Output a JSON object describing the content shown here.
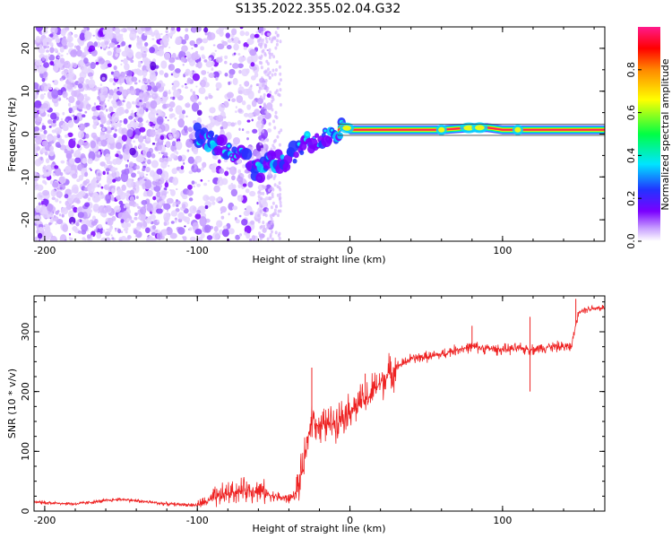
{
  "figure": {
    "title": "S135.2022.355.02.04.G32"
  },
  "chart_data": [
    {
      "type": "heatmap",
      "xlabel": "Height of straight line (km)",
      "ylabel": "Frequency (Hz)",
      "xlim": [
        -207,
        167
      ],
      "ylim": [
        -25,
        25
      ],
      "xticks": [
        -200,
        -100,
        0,
        100
      ],
      "yticks": [
        -20,
        -10,
        0,
        10,
        20
      ],
      "colorbar": {
        "label": "Normalized spectral amplitude",
        "range": [
          0,
          1
        ],
        "ticks": [
          "0.0",
          "0.2",
          "0.4",
          "0.6",
          "0.8"
        ],
        "colors": [
          "#ffffff",
          "#7a00ff",
          "#2233ff",
          "#00e5ff",
          "#00ff44",
          "#ffff00",
          "#ff8800",
          "#ff0000",
          "#ff1a8c"
        ]
      },
      "ridge": {
        "x": [
          -100,
          -90,
          -80,
          -70,
          -60,
          -50,
          -45,
          -40,
          -35,
          -30,
          -20,
          -10,
          -5,
          0,
          10,
          30,
          60,
          80,
          90,
          100,
          120,
          140,
          167
        ],
        "y": [
          0,
          -2,
          -4,
          -5,
          -9,
          -6,
          -7,
          -6,
          -4,
          -2,
          -1,
          0,
          2,
          1,
          1,
          1,
          1,
          1.5,
          1.5,
          1,
          1,
          1,
          1
        ]
      }
    },
    {
      "type": "line",
      "xlabel": "Height of straight line (km)",
      "ylabel": "SNR (10 * v/v)",
      "xlim": [
        -207,
        167
      ],
      "ylim": [
        0,
        360
      ],
      "xticks": [
        -200,
        -100,
        0,
        100
      ],
      "yticks": [
        0,
        100,
        200,
        300
      ],
      "color": "#ee2222",
      "trend": {
        "x": [
          -207,
          -180,
          -150,
          -120,
          -100,
          -90,
          -80,
          -70,
          -60,
          -50,
          -40,
          -35,
          -30,
          -25,
          -20,
          -10,
          0,
          10,
          20,
          30,
          40,
          50,
          60,
          70,
          80,
          90,
          100,
          110,
          120,
          130,
          140,
          145,
          150,
          160,
          167
        ],
        "y": [
          15,
          12,
          20,
          12,
          10,
          20,
          30,
          35,
          35,
          25,
          20,
          30,
          80,
          160,
          140,
          150,
          170,
          185,
          215,
          240,
          255,
          258,
          262,
          270,
          275,
          272,
          270,
          272,
          270,
          275,
          275,
          275,
          335,
          340,
          340
        ]
      },
      "spikes": [
        {
          "x": -25,
          "y": 240
        },
        {
          "x": 10,
          "y": 230
        },
        {
          "x": 80,
          "y": 310
        },
        {
          "x": 118,
          "y": 325
        },
        {
          "x": 118,
          "y": 200
        },
        {
          "x": 148,
          "y": 355
        }
      ]
    }
  ]
}
